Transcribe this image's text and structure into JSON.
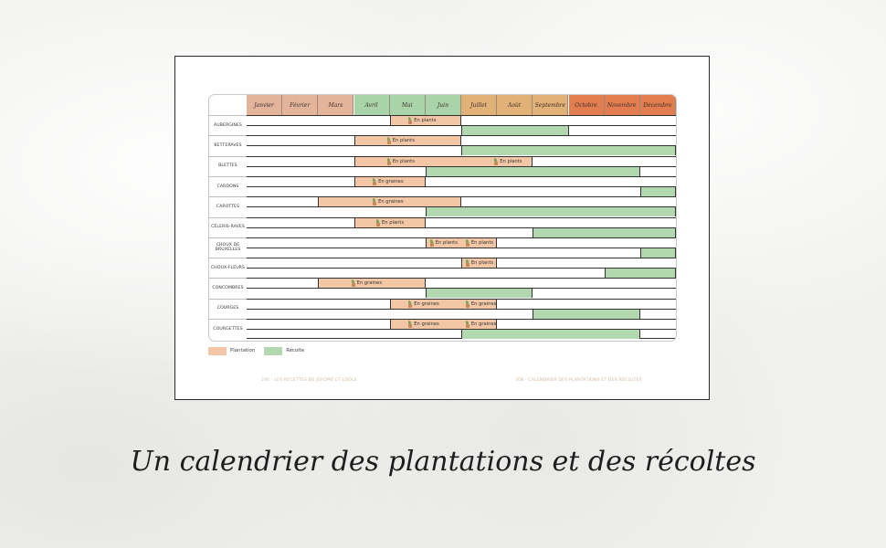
{
  "caption": "Un calendrier des plantations et des récoltes",
  "months": [
    "Janvier",
    "Février",
    "Mars",
    "Avril",
    "Mai",
    "Juin",
    "Juillet",
    "Août",
    "Septembre",
    "Octobre",
    "Novembre",
    "Décembre"
  ],
  "month_colors": [
    "#e3b39a",
    "#e3b39a",
    "#e3b39a",
    "#a9d3a8",
    "#a9d3a8",
    "#a9d3a8",
    "#e2b177",
    "#e2b177",
    "#e2b177",
    "#e37d4f",
    "#e37d4f",
    "#e37d4f"
  ],
  "colors": {
    "plantation": "#f3c7a6",
    "recolte": "#b2d8b0"
  },
  "rows": [
    {
      "name": "AUBERGINES",
      "plant": [
        [
          4,
          6
        ]
      ],
      "harv": [
        [
          6,
          9
        ]
      ],
      "tags": [
        {
          "m": 4.5,
          "t": "En plants"
        }
      ]
    },
    {
      "name": "BETTERAVES",
      "plant": [
        [
          3,
          6
        ]
      ],
      "harv": [
        [
          6,
          12
        ]
      ],
      "tags": [
        {
          "m": 3.9,
          "t": "En plants"
        }
      ]
    },
    {
      "name": "BLETTES",
      "plant": [
        [
          3,
          8
        ]
      ],
      "harv": [
        [
          5,
          11
        ]
      ],
      "tags": [
        {
          "m": 3.9,
          "t": "En plants"
        },
        {
          "m": 6.9,
          "t": "En plants"
        }
      ]
    },
    {
      "name": "CARDONS",
      "plant": [
        [
          3,
          5
        ]
      ],
      "harv": [
        [
          11,
          12
        ]
      ],
      "tags": [
        {
          "m": 3.5,
          "t": "En graines"
        }
      ]
    },
    {
      "name": "CAROTTES",
      "plant": [
        [
          2,
          6
        ]
      ],
      "harv": [
        [
          5,
          12
        ]
      ],
      "tags": [
        {
          "m": 3.5,
          "t": "En graines"
        }
      ]
    },
    {
      "name": "CÉLERIS-RAVES",
      "plant": [
        [
          3,
          5
        ]
      ],
      "harv": [
        [
          8,
          12
        ]
      ],
      "tags": [
        {
          "m": 3.6,
          "t": "En plants"
        }
      ]
    },
    {
      "name": "CHOUX DE BRUXELLES",
      "plant": [
        [
          5,
          7
        ]
      ],
      "harv": [
        [
          11,
          12
        ]
      ],
      "tags": [
        {
          "m": 5.1,
          "t": "En plants"
        },
        {
          "m": 6.1,
          "t": "En plants"
        }
      ]
    },
    {
      "name": "CHOUX-FLEURS",
      "plant": [
        [
          6,
          7
        ]
      ],
      "harv": [
        [
          10,
          12
        ]
      ],
      "tags": [
        {
          "m": 6.1,
          "t": "En plants"
        }
      ]
    },
    {
      "name": "CONCOMBRES",
      "plant": [
        [
          2,
          5
        ]
      ],
      "harv": [
        [
          5,
          8
        ]
      ],
      "tags": [
        {
          "m": 2.9,
          "t": "En graines"
        }
      ]
    },
    {
      "name": "COURGES",
      "plant": [
        [
          4,
          7
        ]
      ],
      "harv": [
        [
          8,
          11
        ]
      ],
      "tags": [
        {
          "m": 4.5,
          "t": "En graines"
        },
        {
          "m": 6.1,
          "t": "En graines"
        }
      ]
    },
    {
      "name": "COURGETTES",
      "plant": [
        [
          4,
          7
        ]
      ],
      "harv": [
        [
          6,
          11
        ]
      ],
      "tags": [
        {
          "m": 4.5,
          "t": "En graines"
        },
        {
          "m": 6.1,
          "t": "En graines"
        }
      ]
    }
  ],
  "legend": {
    "plantation": "Plantation",
    "recolte": "Récolte"
  },
  "footer_left": "290 · LES RECETTES DE JÉRÔME ET LOOLE",
  "footer_right": "308 · CALENDRIER DES PLANTATIONS ET DES RÉCOLTES"
}
